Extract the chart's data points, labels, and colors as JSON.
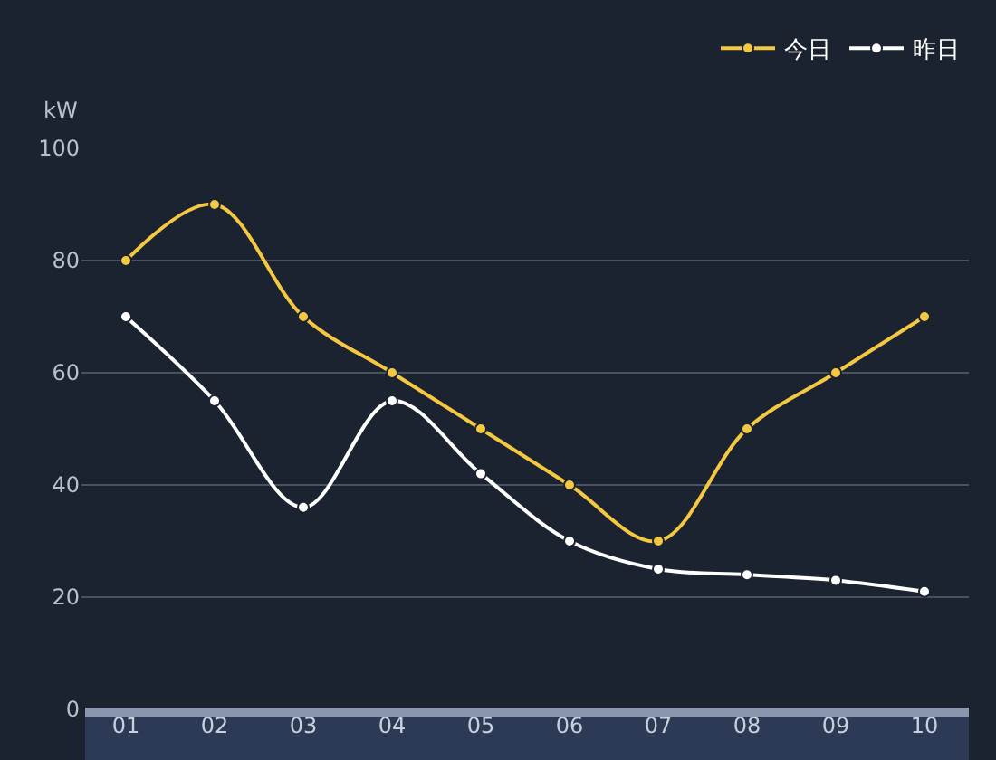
{
  "chart_data": {
    "type": "line",
    "ylabel": "kW",
    "categories": [
      "01",
      "02",
      "03",
      "04",
      "05",
      "06",
      "07",
      "08",
      "09",
      "10"
    ],
    "series": [
      {
        "name": "今日",
        "color": "#f5c842",
        "values": [
          80,
          90,
          70,
          60,
          50,
          40,
          30,
          50,
          60,
          70
        ]
      },
      {
        "name": "昨日",
        "color": "#ffffff",
        "values": [
          70,
          55,
          36,
          55,
          42,
          30,
          25,
          24,
          23,
          21
        ]
      }
    ],
    "ylim": [
      0,
      100
    ],
    "yticks": [
      0,
      20,
      40,
      60,
      80,
      100
    ],
    "grid": "y",
    "legend": "top right",
    "marker": "circle",
    "line_style": "solid"
  }
}
